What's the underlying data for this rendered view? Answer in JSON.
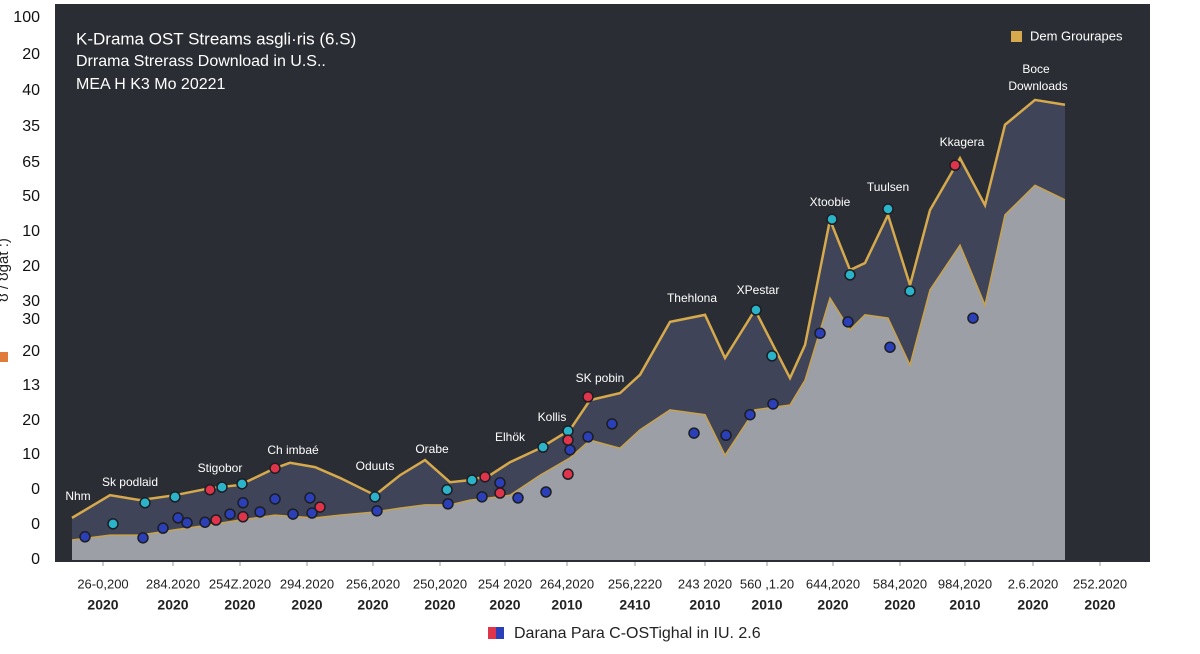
{
  "chart_data": {
    "type": "area",
    "title": "K-Drama OST Streams аsgli·ris (6.S)",
    "subtitle": "Drrama Strerass Download in U.S..",
    "subtitle2": "MEA H K3 Mo 20221",
    "y_axis_title": "ʊ / ʊɡat :)",
    "y_axis_labels": [
      "100",
      "20",
      "40",
      "35",
      "65",
      "50",
      "10",
      "20",
      "30",
      "30",
      "20",
      "13",
      "20",
      "10",
      "0",
      "0",
      "0"
    ],
    "xlim": [
      0,
      1078
    ],
    "ylim": [
      0,
      100
    ],
    "xticks": [
      {
        "value": 31,
        "label": "26-0,200"
      },
      {
        "value": 101,
        "label": "284.2020"
      },
      {
        "value": 168,
        "label": "254Z.2020"
      },
      {
        "value": 235,
        "label": "294.2020"
      },
      {
        "value": 301,
        "label": "256,2020"
      },
      {
        "value": 368,
        "label": "250,2020"
      },
      {
        "value": 433,
        "label": "254 2020"
      },
      {
        "value": 495,
        "label": "264,2020"
      },
      {
        "value": 563,
        "label": "256,2220"
      },
      {
        "value": 633,
        "label": "243 2020"
      },
      {
        "value": 695,
        "label": "560 ,1.20"
      },
      {
        "value": 761,
        "label": "644,2020"
      },
      {
        "value": 828,
        "label": "584,2020"
      },
      {
        "value": 893,
        "label": "984,2020"
      },
      {
        "value": 961,
        "label": "2.6.2020"
      },
      {
        "value": 1028,
        "label": "252.2020"
      }
    ],
    "x_tick_sublabels": [
      "2020",
      "2020",
      "2020",
      "2020",
      "2020",
      "2020",
      "2020",
      "2010",
      "2410",
      "2010",
      "2010",
      "2020",
      "2020",
      "2010",
      "2020",
      "2020"
    ],
    "x": [
      0,
      38,
      68,
      103,
      138,
      168,
      203,
      218,
      243,
      268,
      303,
      328,
      353,
      378,
      398,
      418,
      438,
      468,
      498,
      518,
      548,
      568,
      598,
      633,
      653,
      683,
      718,
      733,
      758,
      778,
      793,
      816,
      838,
      858,
      888,
      913,
      933,
      963,
      993
    ],
    "series": [
      {
        "name": "Dem Grourapes",
        "color": "#3f4459",
        "line_color": "#d6aa4c",
        "values": [
          7.8,
          12,
          11.1,
          12,
          13.3,
          13.9,
          17,
          18,
          17.2,
          15.2,
          12,
          15.7,
          18.5,
          14.4,
          14.8,
          15.7,
          18.1,
          20.7,
          24.1,
          29.6,
          30.9,
          34.3,
          44.1,
          45.4,
          37.4,
          46.3,
          33.7,
          39.8,
          63,
          53.7,
          55,
          63.9,
          50.9,
          64.8,
          74.4,
          65.7,
          80.6,
          85.2,
          84.3
        ]
      },
      {
        "color": "#9c9fa5",
        "line_color": "#c9a24a",
        "values": [
          3.7,
          4.6,
          4.6,
          5.6,
          6.5,
          7.4,
          8.3,
          8.1,
          7.8,
          8.3,
          8.9,
          9.6,
          10.2,
          10.2,
          11.1,
          11.5,
          12,
          15.7,
          18.9,
          22.2,
          20.7,
          24.1,
          27.8,
          26.9,
          19.4,
          27.8,
          28.7,
          33.3,
          48.5,
          42.6,
          45.4,
          44.8,
          36.1,
          50,
          58.3,
          47.2,
          63.9,
          69.4,
          66.7
        ]
      }
    ],
    "markers": [
      {
        "color": "#2bb3c9",
        "x": [
          41,
          73,
          103,
          150,
          170,
          303,
          375,
          400,
          471,
          496,
          700,
          760,
          778,
          816,
          838,
          684
        ],
        "values": [
          6.7,
          10.6,
          11.7,
          13.5,
          14.1,
          11.7,
          13,
          14.8,
          20.9,
          23.9,
          37.8,
          63.1,
          52.8,
          65,
          49.8,
          46.3
        ]
      },
      {
        "color": "#2a3fb8",
        "x": [
          13,
          71,
          91,
          106,
          115,
          133,
          158,
          171,
          188,
          203,
          221,
          240,
          238,
          305,
          376,
          410,
          428,
          446,
          474,
          498,
          516,
          540,
          622,
          654,
          678,
          701,
          748,
          776,
          818,
          901
        ],
        "values": [
          4.3,
          4.1,
          5.9,
          7.8,
          6.9,
          7,
          8.5,
          10.6,
          8.9,
          11.3,
          8.5,
          8.7,
          11.5,
          9.1,
          10.4,
          11.7,
          14.3,
          11.5,
          12.6,
          20.4,
          22.8,
          25.2,
          23.5,
          23.1,
          26.9,
          28.9,
          42,
          44.1,
          39.4,
          44.8
        ]
      },
      {
        "color": "#e0344a",
        "x": [
          138,
          144,
          171,
          203,
          248,
          413,
          428,
          496,
          496,
          516,
          883
        ],
        "values": [
          13,
          7.4,
          8,
          17,
          9.8,
          15.4,
          12.4,
          22.2,
          15.9,
          30.2,
          73.1
        ]
      }
    ],
    "annotations": [
      "Nhm",
      "Sk podlaid",
      "Stigobor",
      "Ch imbaé",
      "Oduuts",
      "Orabe",
      "Elhök",
      "Kollis",
      "SK pobin",
      "Thehlona",
      "XPestar",
      "Xtoobie",
      "Tuulsen",
      "Kkagera",
      "Boce",
      "Downloads"
    ],
    "legend_position": "upper right",
    "footer_legend": "Darana Para C-OSTighal in IU. 2.6"
  }
}
